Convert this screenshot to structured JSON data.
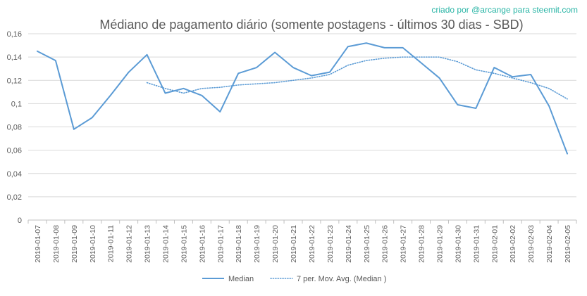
{
  "chart_data": {
    "type": "line",
    "title": "Médiano de pagamento diário (somente postagens - últimos 30 dias - SBD)",
    "credit": "criado por @arcange para steemit.com",
    "xlabel": "",
    "ylabel": "",
    "ylim": [
      0,
      0.16
    ],
    "yticks": [
      {
        "value": 0,
        "label": "0"
      },
      {
        "value": 0.02,
        "label": "0,02"
      },
      {
        "value": 0.04,
        "label": "0,04"
      },
      {
        "value": 0.06,
        "label": "0,06"
      },
      {
        "value": 0.08,
        "label": "0,08"
      },
      {
        "value": 0.1,
        "label": "0,1"
      },
      {
        "value": 0.12,
        "label": "0,12"
      },
      {
        "value": 0.14,
        "label": "0,14"
      },
      {
        "value": 0.16,
        "label": "0,16"
      }
    ],
    "grid": true,
    "legend_position": "bottom",
    "colors": {
      "line": "#5b9bd5",
      "grid": "#d9d9d9",
      "axis": "#bfbfbf",
      "text": "#595959"
    },
    "x": [
      "2019-01-07",
      "2019-01-08",
      "2019-01-09",
      "2019-01-10",
      "2019-01-11",
      "2019-01-12",
      "2019-01-13",
      "2019-01-14",
      "2019-01-15",
      "2019-01-16",
      "2019-01-17",
      "2019-01-18",
      "2019-01-19",
      "2019-01-20",
      "2019-01-21",
      "2019-01-22",
      "2019-01-23",
      "2019-01-24",
      "2019-01-25",
      "2019-01-26",
      "2019-01-27",
      "2019-01-28",
      "2019-01-29",
      "2019-01-30",
      "2019-01-31",
      "2019-02-01",
      "2019-02-02",
      "2019-02-03",
      "2019-02-04",
      "2019-02-05"
    ],
    "series": [
      {
        "name": "Median",
        "style": "solid",
        "values": [
          0.145,
          0.137,
          0.078,
          0.088,
          0.107,
          0.127,
          0.142,
          0.109,
          0.113,
          0.107,
          0.093,
          0.126,
          0.131,
          0.144,
          0.131,
          0.124,
          0.127,
          0.149,
          0.152,
          0.148,
          0.148,
          0.135,
          0.122,
          0.099,
          0.096,
          0.131,
          0.123,
          0.125,
          0.098,
          0.057
        ]
      },
      {
        "name": "7 per. Mov. Avg. (Median )",
        "style": "dotted",
        "values": [
          null,
          null,
          null,
          null,
          null,
          null,
          0.118,
          0.113,
          0.109,
          0.113,
          0.114,
          0.116,
          0.117,
          0.118,
          0.12,
          0.122,
          0.125,
          0.133,
          0.137,
          0.139,
          0.14,
          0.14,
          0.14,
          0.136,
          0.129,
          0.126,
          0.122,
          0.118,
          0.113,
          0.104
        ]
      }
    ]
  }
}
